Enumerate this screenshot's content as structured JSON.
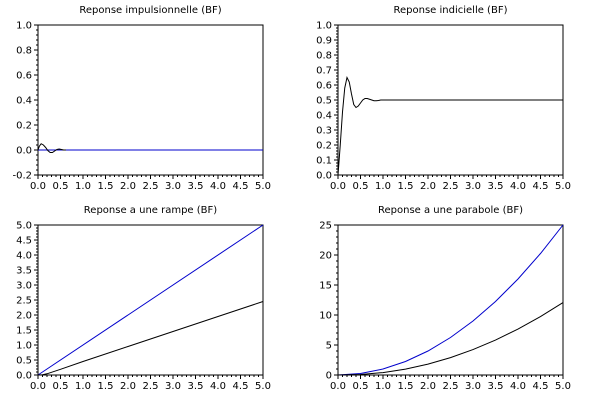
{
  "chart_data": [
    {
      "type": "line",
      "title": "Reponse impulsionnelle (BF)",
      "xlabel": "",
      "ylabel": "",
      "xlim": [
        0,
        5
      ],
      "ylim": [
        -0.2,
        1.0
      ],
      "x_ticks": [
        "0.0",
        "0.5",
        "1.0",
        "1.5",
        "2.0",
        "2.5",
        "3.0",
        "3.5",
        "4.0",
        "4.5",
        "5.0"
      ],
      "y_ticks": [
        "-0.2",
        "0.0",
        "0.2",
        "0.4",
        "0.6",
        "0.8",
        "1.0"
      ],
      "grid": false,
      "series": [
        {
          "color": "#0000cc",
          "x": [
            0,
            0.6,
            5.0
          ],
          "y": [
            0.0,
            0.0,
            0.0
          ]
        },
        {
          "color": "#000000",
          "x": [
            0,
            0.03,
            0.07,
            0.12,
            0.17,
            0.22,
            0.27,
            0.32,
            0.37,
            0.42,
            0.47,
            0.52,
            0.57,
            0.62
          ],
          "y": [
            0.0,
            0.03,
            0.05,
            0.04,
            0.02,
            -0.005,
            -0.02,
            -0.02,
            -0.008,
            0.004,
            0.008,
            0.004,
            0.0,
            0.0
          ]
        }
      ]
    },
    {
      "type": "line",
      "title": "Reponse indicielle (BF)",
      "xlabel": "",
      "ylabel": "",
      "xlim": [
        0,
        5
      ],
      "ylim": [
        0,
        1.0
      ],
      "x_ticks": [
        "0.0",
        "0.5",
        "1.0",
        "1.5",
        "2.0",
        "2.5",
        "3.0",
        "3.5",
        "4.0",
        "4.5",
        "5.0"
      ],
      "y_ticks": [
        "0.0",
        "0.1",
        "0.2",
        "0.3",
        "0.4",
        "0.5",
        "0.6",
        "0.7",
        "0.8",
        "0.9",
        "1.0"
      ],
      "grid": false,
      "series": [
        {
          "color": "#000000",
          "x": [
            0,
            0.05,
            0.1,
            0.15,
            0.2,
            0.25,
            0.3,
            0.35,
            0.4,
            0.45,
            0.5,
            0.55,
            0.6,
            0.65,
            0.7,
            0.75,
            0.8,
            0.85,
            0.9,
            0.95,
            1.0,
            1.1,
            1.3,
            5.0
          ],
          "y": [
            0.0,
            0.2,
            0.42,
            0.58,
            0.65,
            0.62,
            0.54,
            0.47,
            0.45,
            0.46,
            0.48,
            0.5,
            0.51,
            0.51,
            0.505,
            0.5,
            0.495,
            0.495,
            0.497,
            0.5,
            0.5,
            0.5,
            0.5,
            0.5
          ]
        }
      ]
    },
    {
      "type": "line",
      "title": "Reponse a une rampe (BF)",
      "xlabel": "",
      "ylabel": "",
      "xlim": [
        0,
        5
      ],
      "ylim": [
        0,
        5.0
      ],
      "x_ticks": [
        "0.0",
        "0.5",
        "1.0",
        "1.5",
        "2.0",
        "2.5",
        "3.0",
        "3.5",
        "4.0",
        "4.5",
        "5.0"
      ],
      "y_ticks": [
        "0.0",
        "0.5",
        "1.0",
        "1.5",
        "2.0",
        "2.5",
        "3.0",
        "3.5",
        "4.0",
        "4.5",
        "5.0"
      ],
      "grid": false,
      "series": [
        {
          "color": "#0000cc",
          "x": [
            0,
            5.0
          ],
          "y": [
            0,
            5.0
          ]
        },
        {
          "color": "#000000",
          "x": [
            0,
            0.1,
            0.2,
            0.3,
            0.5,
            1.0,
            2.0,
            3.0,
            4.0,
            5.0
          ],
          "y": [
            0,
            0.01,
            0.04,
            0.09,
            0.19,
            0.45,
            0.95,
            1.45,
            1.95,
            2.45
          ]
        }
      ]
    },
    {
      "type": "line",
      "title": "Reponse a une parabole (BF)",
      "xlabel": "",
      "ylabel": "",
      "xlim": [
        0,
        5
      ],
      "ylim": [
        0,
        25
      ],
      "x_ticks": [
        "0.0",
        "0.5",
        "1.0",
        "1.5",
        "2.0",
        "2.5",
        "3.0",
        "3.5",
        "4.0",
        "4.5",
        "5.0"
      ],
      "y_ticks": [
        "0",
        "5",
        "10",
        "15",
        "20",
        "25"
      ],
      "grid": false,
      "series": [
        {
          "color": "#0000cc",
          "x": [
            0,
            0.5,
            1.0,
            1.5,
            2.0,
            2.5,
            3.0,
            3.5,
            4.0,
            4.5,
            5.0
          ],
          "y": [
            0,
            0.25,
            1.0,
            2.25,
            4.0,
            6.25,
            9.0,
            12.25,
            16.0,
            20.25,
            25.0
          ]
        },
        {
          "color": "#000000",
          "x": [
            0,
            0.5,
            1.0,
            1.5,
            2.0,
            2.5,
            3.0,
            3.5,
            4.0,
            4.5,
            5.0
          ],
          "y": [
            0,
            0.08,
            0.4,
            0.98,
            1.82,
            2.9,
            4.24,
            5.82,
            7.66,
            9.74,
            12.08
          ]
        }
      ]
    }
  ]
}
